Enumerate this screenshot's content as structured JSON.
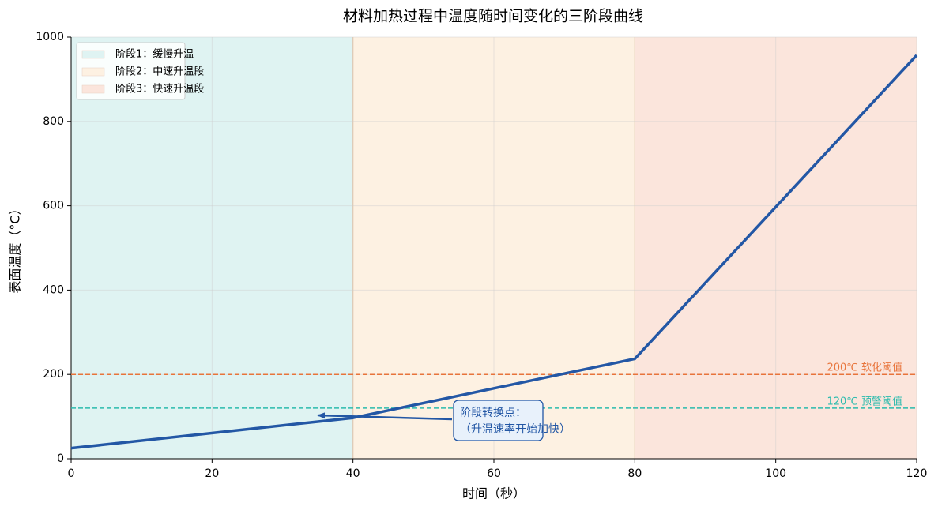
{
  "chart_data": {
    "type": "line",
    "title": "材料加热过程中温度随时间变化的三阶段曲线",
    "x_label": "时间（秒）",
    "y_label": "表面温度（°C）",
    "x": [
      0,
      40,
      80,
      120
    ],
    "values": [
      25,
      97,
      237,
      957
    ],
    "color": "#2357a5",
    "xlim": [
      0,
      120
    ],
    "xticks": [
      0,
      20,
      40,
      60,
      80,
      100,
      120
    ],
    "ylim": [
      0,
      1000
    ],
    "yticks": [
      0,
      200,
      400,
      600,
      800,
      1000
    ],
    "grid": true,
    "legend": "upper left",
    "regions": [
      {
        "name": "阶段1：缓慢升温",
        "range": [
          0,
          40
        ],
        "color": "#dff3f2"
      },
      {
        "name": "阶段2：中速升温段",
        "range": [
          40,
          80
        ],
        "color": "#fdf1e2"
      },
      {
        "name": "阶段3：快速升温段",
        "range": [
          80,
          120
        ],
        "color": "#fbe5dc"
      }
    ],
    "thresholds": [
      {
        "value": 200,
        "label": "200℃ 软化阈值",
        "color": "#e8743b"
      },
      {
        "value": 120,
        "label": "120℃ 预警阈值",
        "color": "#2bbbad"
      }
    ],
    "annotation": {
      "lines": [
        "阶段转换点：",
        "（升温速率开始加快）"
      ],
      "xy": [
        35,
        103
      ]
    }
  }
}
